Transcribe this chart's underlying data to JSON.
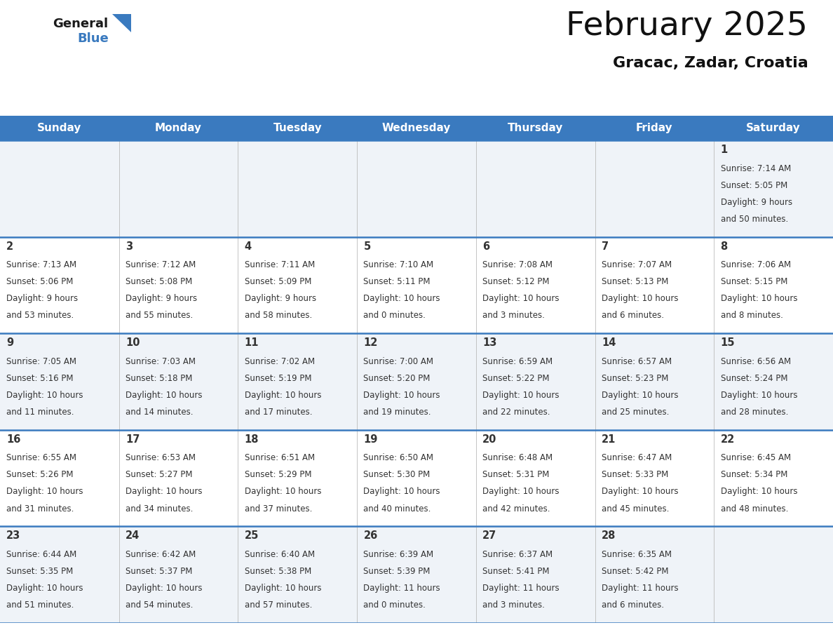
{
  "title": "February 2025",
  "subtitle": "Gracac, Zadar, Croatia",
  "header_bg": "#3a7abf",
  "header_text": "#ffffff",
  "cell_bg_light": "#eff3f8",
  "cell_bg_white": "#ffffff",
  "divider_color": "#3a7abf",
  "text_color": "#333333",
  "day_headers": [
    "Sunday",
    "Monday",
    "Tuesday",
    "Wednesday",
    "Thursday",
    "Friday",
    "Saturday"
  ],
  "days": [
    {
      "day": 1,
      "col": 6,
      "row": 0,
      "sunrise": "7:14 AM",
      "sunset": "5:05 PM",
      "daylight_h": "9 hours",
      "daylight_m": "and 50 minutes."
    },
    {
      "day": 2,
      "col": 0,
      "row": 1,
      "sunrise": "7:13 AM",
      "sunset": "5:06 PM",
      "daylight_h": "9 hours",
      "daylight_m": "and 53 minutes."
    },
    {
      "day": 3,
      "col": 1,
      "row": 1,
      "sunrise": "7:12 AM",
      "sunset": "5:08 PM",
      "daylight_h": "9 hours",
      "daylight_m": "and 55 minutes."
    },
    {
      "day": 4,
      "col": 2,
      "row": 1,
      "sunrise": "7:11 AM",
      "sunset": "5:09 PM",
      "daylight_h": "9 hours",
      "daylight_m": "and 58 minutes."
    },
    {
      "day": 5,
      "col": 3,
      "row": 1,
      "sunrise": "7:10 AM",
      "sunset": "5:11 PM",
      "daylight_h": "10 hours",
      "daylight_m": "and 0 minutes."
    },
    {
      "day": 6,
      "col": 4,
      "row": 1,
      "sunrise": "7:08 AM",
      "sunset": "5:12 PM",
      "daylight_h": "10 hours",
      "daylight_m": "and 3 minutes."
    },
    {
      "day": 7,
      "col": 5,
      "row": 1,
      "sunrise": "7:07 AM",
      "sunset": "5:13 PM",
      "daylight_h": "10 hours",
      "daylight_m": "and 6 minutes."
    },
    {
      "day": 8,
      "col": 6,
      "row": 1,
      "sunrise": "7:06 AM",
      "sunset": "5:15 PM",
      "daylight_h": "10 hours",
      "daylight_m": "and 8 minutes."
    },
    {
      "day": 9,
      "col": 0,
      "row": 2,
      "sunrise": "7:05 AM",
      "sunset": "5:16 PM",
      "daylight_h": "10 hours",
      "daylight_m": "and 11 minutes."
    },
    {
      "day": 10,
      "col": 1,
      "row": 2,
      "sunrise": "7:03 AM",
      "sunset": "5:18 PM",
      "daylight_h": "10 hours",
      "daylight_m": "and 14 minutes."
    },
    {
      "day": 11,
      "col": 2,
      "row": 2,
      "sunrise": "7:02 AM",
      "sunset": "5:19 PM",
      "daylight_h": "10 hours",
      "daylight_m": "and 17 minutes."
    },
    {
      "day": 12,
      "col": 3,
      "row": 2,
      "sunrise": "7:00 AM",
      "sunset": "5:20 PM",
      "daylight_h": "10 hours",
      "daylight_m": "and 19 minutes."
    },
    {
      "day": 13,
      "col": 4,
      "row": 2,
      "sunrise": "6:59 AM",
      "sunset": "5:22 PM",
      "daylight_h": "10 hours",
      "daylight_m": "and 22 minutes."
    },
    {
      "day": 14,
      "col": 5,
      "row": 2,
      "sunrise": "6:57 AM",
      "sunset": "5:23 PM",
      "daylight_h": "10 hours",
      "daylight_m": "and 25 minutes."
    },
    {
      "day": 15,
      "col": 6,
      "row": 2,
      "sunrise": "6:56 AM",
      "sunset": "5:24 PM",
      "daylight_h": "10 hours",
      "daylight_m": "and 28 minutes."
    },
    {
      "day": 16,
      "col": 0,
      "row": 3,
      "sunrise": "6:55 AM",
      "sunset": "5:26 PM",
      "daylight_h": "10 hours",
      "daylight_m": "and 31 minutes."
    },
    {
      "day": 17,
      "col": 1,
      "row": 3,
      "sunrise": "6:53 AM",
      "sunset": "5:27 PM",
      "daylight_h": "10 hours",
      "daylight_m": "and 34 minutes."
    },
    {
      "day": 18,
      "col": 2,
      "row": 3,
      "sunrise": "6:51 AM",
      "sunset": "5:29 PM",
      "daylight_h": "10 hours",
      "daylight_m": "and 37 minutes."
    },
    {
      "day": 19,
      "col": 3,
      "row": 3,
      "sunrise": "6:50 AM",
      "sunset": "5:30 PM",
      "daylight_h": "10 hours",
      "daylight_m": "and 40 minutes."
    },
    {
      "day": 20,
      "col": 4,
      "row": 3,
      "sunrise": "6:48 AM",
      "sunset": "5:31 PM",
      "daylight_h": "10 hours",
      "daylight_m": "and 42 minutes."
    },
    {
      "day": 21,
      "col": 5,
      "row": 3,
      "sunrise": "6:47 AM",
      "sunset": "5:33 PM",
      "daylight_h": "10 hours",
      "daylight_m": "and 45 minutes."
    },
    {
      "day": 22,
      "col": 6,
      "row": 3,
      "sunrise": "6:45 AM",
      "sunset": "5:34 PM",
      "daylight_h": "10 hours",
      "daylight_m": "and 48 minutes."
    },
    {
      "day": 23,
      "col": 0,
      "row": 4,
      "sunrise": "6:44 AM",
      "sunset": "5:35 PM",
      "daylight_h": "10 hours",
      "daylight_m": "and 51 minutes."
    },
    {
      "day": 24,
      "col": 1,
      "row": 4,
      "sunrise": "6:42 AM",
      "sunset": "5:37 PM",
      "daylight_h": "10 hours",
      "daylight_m": "and 54 minutes."
    },
    {
      "day": 25,
      "col": 2,
      "row": 4,
      "sunrise": "6:40 AM",
      "sunset": "5:38 PM",
      "daylight_h": "10 hours",
      "daylight_m": "and 57 minutes."
    },
    {
      "day": 26,
      "col": 3,
      "row": 4,
      "sunrise": "6:39 AM",
      "sunset": "5:39 PM",
      "daylight_h": "11 hours",
      "daylight_m": "and 0 minutes."
    },
    {
      "day": 27,
      "col": 4,
      "row": 4,
      "sunrise": "6:37 AM",
      "sunset": "5:41 PM",
      "daylight_h": "11 hours",
      "daylight_m": "and 3 minutes."
    },
    {
      "day": 28,
      "col": 5,
      "row": 4,
      "sunrise": "6:35 AM",
      "sunset": "5:42 PM",
      "daylight_h": "11 hours",
      "daylight_m": "and 6 minutes."
    }
  ],
  "fig_width": 11.88,
  "fig_height": 9.18,
  "dpi": 100
}
